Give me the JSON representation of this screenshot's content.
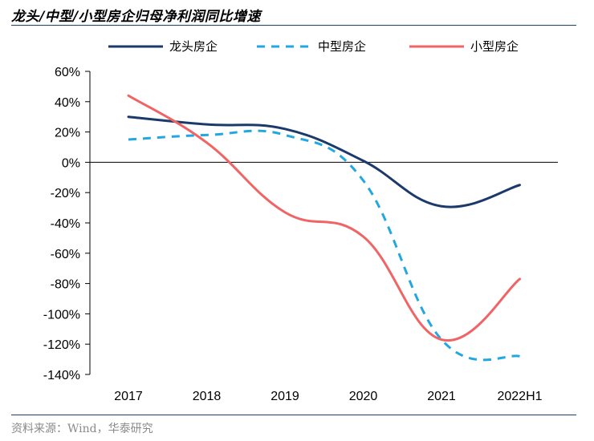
{
  "page": {
    "title": "龙头/中型/小型房企归母净利润同比增速",
    "source": "资料来源：Wind，华泰研究"
  },
  "chart_data": {
    "type": "line",
    "title": "龙头/中型/小型房企归母净利润同比增速",
    "xlabel": "",
    "ylabel": "",
    "categories": [
      "2017",
      "2018",
      "2019",
      "2020",
      "2021",
      "2022H1"
    ],
    "ylim": [
      -140,
      60
    ],
    "y_ticks": [
      60,
      40,
      20,
      0,
      -20,
      -40,
      -60,
      -80,
      -100,
      -120,
      -140
    ],
    "y_tick_labels": [
      "60%",
      "40%",
      "20%",
      "0%",
      "-20%",
      "-40%",
      "-60%",
      "-80%",
      "-100%",
      "-120%",
      "-140%"
    ],
    "grid": false,
    "legend_position": "top",
    "series": [
      {
        "name": "龙头房企",
        "values": [
          30,
          25,
          22,
          1,
          -29,
          -15
        ],
        "color": "#1b3a6b",
        "style": "solid"
      },
      {
        "name": "中型房企",
        "values": [
          15,
          18,
          18,
          -12,
          -117,
          -128
        ],
        "color": "#22a7e0",
        "style": "dashed"
      },
      {
        "name": "小型房企",
        "values": [
          44,
          13,
          -33,
          -49,
          -117,
          -77
        ],
        "color": "#f06466",
        "style": "solid"
      }
    ]
  }
}
